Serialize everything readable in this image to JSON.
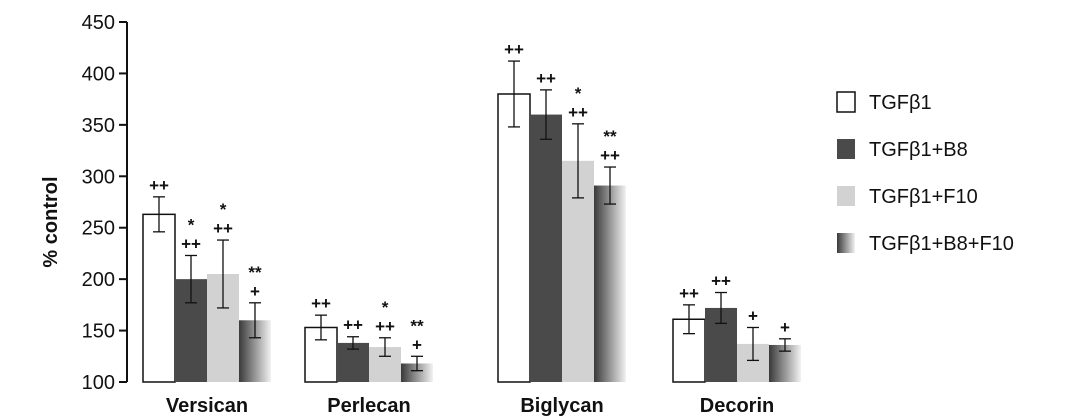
{
  "chart_data": {
    "type": "bar",
    "title": "",
    "xlabel": "",
    "ylabel": "% control",
    "ylim": [
      100,
      450
    ],
    "yticks": [
      100,
      150,
      200,
      250,
      300,
      350,
      400,
      450
    ],
    "grid": false,
    "legend_position": "right",
    "categories": [
      "Versican",
      "Perlecan",
      "Biglycan",
      "Decorin"
    ],
    "series": [
      {
        "name": "TGFβ1",
        "fill": "#ffffff",
        "values": [
          263,
          153,
          380,
          161
        ],
        "errors": [
          17,
          12,
          32,
          14
        ],
        "annotations": [
          [
            "++"
          ],
          [
            "++"
          ],
          [
            "++"
          ],
          [
            "++"
          ]
        ]
      },
      {
        "name": "TGFβ1+B8",
        "fill": "#4a4a4a",
        "values": [
          200,
          138,
          360,
          172
        ],
        "errors": [
          23,
          6,
          24,
          15
        ],
        "annotations": [
          [
            "*",
            "++"
          ],
          [
            "++"
          ],
          [
            "++"
          ],
          [
            "++"
          ]
        ]
      },
      {
        "name": "TGFβ1+F10",
        "fill": "#d2d2d2",
        "values": [
          205,
          134,
          315,
          137
        ],
        "errors": [
          33,
          9,
          36,
          16
        ],
        "annotations": [
          [
            "*",
            "++"
          ],
          [
            "*",
            "++"
          ],
          [
            "*",
            "++"
          ],
          [
            "+"
          ]
        ]
      },
      {
        "name": "TGFβ1+B8+F10",
        "fill": "gradient",
        "values": [
          160,
          118,
          291,
          136
        ],
        "errors": [
          17,
          7,
          18,
          6
        ],
        "annotations": [
          [
            "**",
            "+"
          ],
          [
            "**",
            "+"
          ],
          [
            "**",
            "++"
          ],
          [
            "+"
          ]
        ]
      }
    ]
  }
}
